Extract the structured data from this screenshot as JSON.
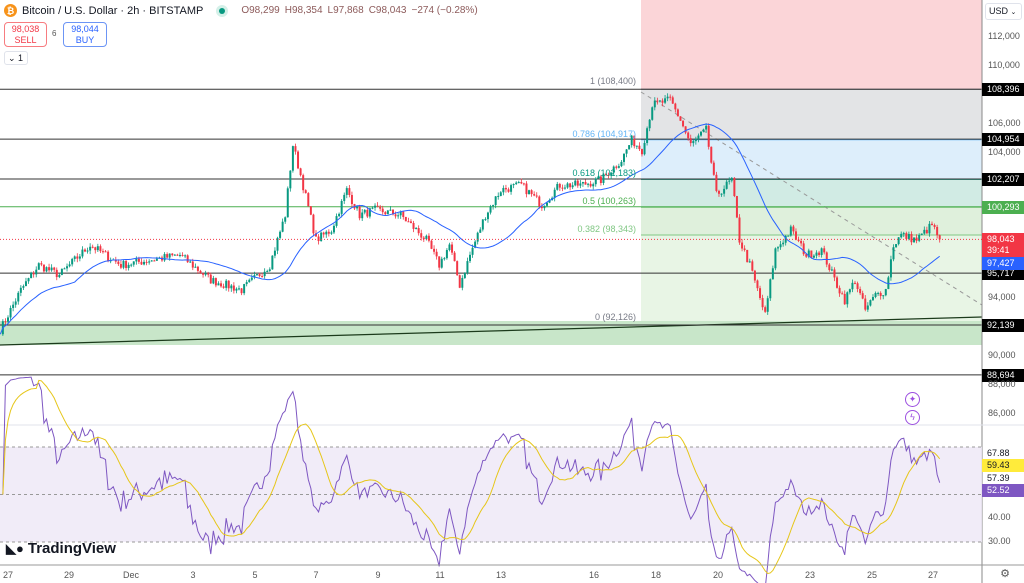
{
  "header": {
    "symbol_icon": "bitcoin-icon",
    "title": "Bitcoin / U.S. Dollar · 2h · BITSTAMP",
    "market_status": "open",
    "open": "O98,299",
    "high": "H98,354",
    "low": "L97,868",
    "close": "C98,043",
    "change": "−274 (−0.28%)"
  },
  "trade": {
    "sell_price": "98,038",
    "sell_label": "SELL",
    "spread": "6",
    "buy_price": "98,044",
    "buy_label": "BUY"
  },
  "indicators_toggle": "1",
  "currency": "USD",
  "brand": "TradingView",
  "colors": {
    "up": "#089981",
    "down": "#f23645",
    "ma": "#2962ff",
    "rsi": "#7e57c2",
    "rsi_ma": "#e6c619",
    "support_zone": "#a5d6a7"
  },
  "price_axis": {
    "ticks": [
      "112,000",
      "110,000",
      "106,000",
      "104,000",
      "94,000",
      "90,000",
      "88,000",
      "86,000"
    ],
    "levels": [
      {
        "label": "108,396",
        "value": 108396,
        "color": "#000000"
      },
      {
        "label": "104,954",
        "value": 104954,
        "color": "#000000"
      },
      {
        "label": "102,207",
        "value": 102207,
        "color": "#000000"
      },
      {
        "label": "100,293",
        "value": 100293,
        "color": "#4caf50"
      },
      {
        "label": "95,717",
        "value": 95717,
        "color": "#000000"
      },
      {
        "label": "92,139",
        "value": 92139,
        "color": "#000000"
      },
      {
        "label": "88,694",
        "value": 88694,
        "color": "#000000"
      }
    ],
    "last_price": {
      "label": "98,043",
      "value": 98043,
      "countdown": "39:41",
      "color": "#f23645"
    },
    "ma_value": {
      "label": "97,427",
      "value": 97427,
      "color": "#2962ff"
    }
  },
  "fib": [
    {
      "label": "1 (108,400)",
      "value": 108400,
      "color": "#787b86"
    },
    {
      "label": "0.786 (104,917)",
      "value": 104917,
      "color": "#64b5f6"
    },
    {
      "label": "0.618 (102,183)",
      "value": 102183,
      "color": "#089981"
    },
    {
      "label": "0.5 (100,263)",
      "value": 100263,
      "color": "#4caf50"
    },
    {
      "label": "0.382 (98,343)",
      "value": 98343,
      "color": "#81c784"
    },
    {
      "label": "0 (92,126)",
      "value": 92126,
      "color": "#787b86"
    }
  ],
  "rsi_axis": {
    "ticks": [
      "30.00",
      "40.00"
    ],
    "labels": [
      {
        "label": "67.88",
        "color": "#131722"
      },
      {
        "label": "59.43",
        "color": "#ffeb3b"
      },
      {
        "label": "57.39",
        "color": "#131722"
      },
      {
        "label": "52.52",
        "color": "#7e57c2"
      }
    ]
  },
  "time_axis": [
    "27",
    "29",
    "Dec",
    "3",
    "5",
    "7",
    "9",
    "11",
    "13",
    "16",
    "18",
    "20",
    "23",
    "25",
    "27"
  ],
  "chart_data": {
    "type": "candlestick",
    "interval": "2h",
    "ylim": [
      84500,
      113500
    ],
    "close_path": [
      [
        "11-26 18:00",
        91800
      ],
      [
        "11-27 10:00",
        94550
      ],
      [
        "11-28 00:00",
        96275
      ],
      [
        "11-28 16:00",
        95585
      ],
      [
        "11-29 16:00",
        97655
      ],
      [
        "11-30 16:00",
        96275
      ],
      [
        "12-01 14:00",
        96965
      ],
      [
        "12-02 14:00",
        95240
      ],
      [
        "12-03 14:00",
        94550
      ],
      [
        "12-04 12:00",
        96275
      ],
      [
        "12-05 00:00",
        99725
      ],
      [
        "12-05 06:00",
        104550
      ],
      [
        "12-05 12:00",
        102480
      ],
      [
        "12-06 00:00",
        98000
      ],
      [
        "12-06 12:00",
        98690
      ],
      [
        "12-07 00:00",
        101450
      ],
      [
        "12-07 10:00",
        99725
      ],
      [
        "12-07 22:00",
        100070
      ],
      [
        "12-08 18:00",
        99725
      ],
      [
        "12-09 14:00",
        98000
      ],
      [
        "12-10 00:00",
        96275
      ],
      [
        "12-10 08:00",
        97655
      ],
      [
        "12-10 16:00",
        94895
      ],
      [
        "12-11 00:00",
        96965
      ],
      [
        "12-11 12:00",
        99725
      ],
      [
        "12-12 00:00",
        101450
      ],
      [
        "12-12 16:00",
        101795
      ],
      [
        "12-13 08:00",
        100415
      ],
      [
        "12-13 22:00",
        101795
      ],
      [
        "12-14 14:00",
        101795
      ],
      [
        "12-15 06:00",
        102140
      ],
      [
        "12-15 22:00",
        103520
      ],
      [
        "12-16 06:00",
        104900
      ],
      [
        "12-16 14:00",
        104210
      ],
      [
        "12-16 22:00",
        107310
      ],
      [
        "12-17 12:00",
        107655
      ],
      [
        "12-17 20:00",
        106275
      ],
      [
        "12-18 04:00",
        104550
      ],
      [
        "12-18 16:00",
        105585
      ],
      [
        "12-19 00:00",
        101100
      ],
      [
        "12-19 12:00",
        102140
      ],
      [
        "12-19 18:00",
        98000
      ],
      [
        "12-20 02:00",
        96275
      ],
      [
        "12-20 14:00",
        92825
      ],
      [
        "12-20 22:00",
        97310
      ],
      [
        "12-21 10:00",
        98690
      ],
      [
        "12-21 22:00",
        96965
      ],
      [
        "12-22 10:00",
        97310
      ],
      [
        "12-22 22:00",
        94895
      ],
      [
        "12-23 04:00",
        93860
      ],
      [
        "12-23 12:00",
        95240
      ],
      [
        "12-23 20:00",
        93170
      ],
      [
        "12-24 04:00",
        94205
      ],
      [
        "12-24 12:00",
        94550
      ],
      [
        "12-24 18:00",
        97655
      ],
      [
        "12-25 00:00",
        98345
      ],
      [
        "12-25 12:00",
        98000
      ],
      [
        "12-26 00:00",
        99035
      ],
      [
        "12-26 06:00",
        98043
      ]
    ]
  }
}
